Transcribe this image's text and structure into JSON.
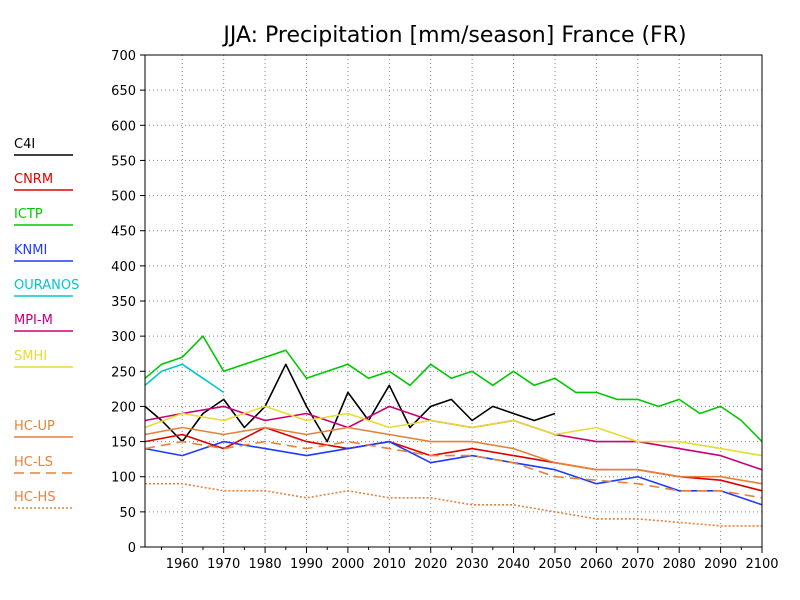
{
  "chart_data": {
    "type": "line",
    "title": "JJA: Precipitation [mm/season] France (FR)",
    "xlabel": "",
    "ylabel": "",
    "xlim": [
      1951,
      2100
    ],
    "ylim": [
      0,
      700
    ],
    "x_ticks": [
      1960,
      1970,
      1980,
      1990,
      2000,
      2010,
      2020,
      2030,
      2040,
      2050,
      2060,
      2070,
      2080,
      2090,
      2100
    ],
    "y_ticks": [
      0,
      50,
      100,
      150,
      200,
      250,
      300,
      350,
      400,
      450,
      500,
      550,
      600,
      650,
      700
    ],
    "grid": true,
    "legend_position": "left",
    "series": [
      {
        "name": "C4I",
        "color": "#000000",
        "style": "solid",
        "x": [
          1951,
          1955,
          1960,
          1965,
          1970,
          1975,
          1980,
          1985,
          1990,
          1995,
          2000,
          2005,
          2010,
          2015,
          2020,
          2025,
          2030,
          2035,
          2040,
          2045,
          2050
        ],
        "values": [
          200,
          180,
          150,
          190,
          210,
          170,
          200,
          260,
          200,
          150,
          220,
          180,
          230,
          170,
          200,
          210,
          180,
          200,
          190,
          180,
          190
        ]
      },
      {
        "name": "CNRM",
        "color": "#e00000",
        "style": "solid",
        "x": [
          1951,
          1960,
          1970,
          1980,
          1990,
          2000,
          2010,
          2020,
          2030,
          2040,
          2050,
          2060,
          2070,
          2080,
          2090,
          2100
        ],
        "values": [
          150,
          160,
          140,
          170,
          150,
          140,
          150,
          130,
          140,
          130,
          120,
          110,
          110,
          100,
          95,
          80
        ]
      },
      {
        "name": "ICTP",
        "color": "#00c800",
        "style": "solid",
        "x": [
          1951,
          1955,
          1960,
          1965,
          1970,
          1975,
          1980,
          1985,
          1990,
          1995,
          2000,
          2005,
          2010,
          2015,
          2020,
          2025,
          2030,
          2035,
          2040,
          2045,
          2050,
          2055,
          2060,
          2065,
          2070,
          2075,
          2080,
          2085,
          2090,
          2095,
          2100
        ],
        "values": [
          240,
          260,
          270,
          300,
          250,
          260,
          270,
          280,
          240,
          250,
          260,
          240,
          250,
          230,
          260,
          240,
          250,
          230,
          250,
          230,
          240,
          220,
          220,
          210,
          210,
          200,
          210,
          190,
          200,
          180,
          150
        ]
      },
      {
        "name": "KNMI",
        "color": "#1e3cff",
        "style": "solid",
        "x": [
          1951,
          1960,
          1970,
          1980,
          1990,
          2000,
          2010,
          2020,
          2030,
          2040,
          2050,
          2060,
          2070,
          2080,
          2090,
          2100
        ],
        "values": [
          140,
          130,
          150,
          140,
          130,
          140,
          150,
          120,
          130,
          120,
          110,
          90,
          100,
          80,
          80,
          60
        ]
      },
      {
        "name": "OURANOS",
        "color": "#00c8c8",
        "style": "solid",
        "x": [
          1951,
          1955,
          1960,
          1965,
          1970
        ],
        "values": [
          230,
          250,
          260,
          240,
          220
        ]
      },
      {
        "name": "MPI-M",
        "color": "#c80078",
        "style": "solid",
        "x": [
          1951,
          1960,
          1970,
          1980,
          1990,
          2000,
          2010,
          2020,
          2030,
          2040,
          2050,
          2060,
          2070,
          2080,
          2090,
          2100
        ],
        "values": [
          180,
          190,
          200,
          180,
          190,
          170,
          200,
          180,
          170,
          180,
          160,
          150,
          150,
          140,
          130,
          110
        ]
      },
      {
        "name": "SMHI",
        "color": "#e6dc32",
        "style": "solid",
        "x": [
          1951,
          1960,
          1970,
          1980,
          1990,
          2000,
          2010,
          2020,
          2030,
          2040,
          2050,
          2060,
          2070,
          2080,
          2090,
          2100
        ],
        "values": [
          170,
          190,
          180,
          200,
          180,
          190,
          170,
          180,
          170,
          180,
          160,
          170,
          150,
          150,
          140,
          130
        ]
      },
      {
        "name": "HC-UP",
        "color": "#e6823c",
        "style": "solid",
        "x": [
          1951,
          1960,
          1970,
          1980,
          1990,
          2000,
          2010,
          2020,
          2030,
          2040,
          2050,
          2060,
          2070,
          2080,
          2090,
          2100
        ],
        "values": [
          160,
          170,
          160,
          170,
          160,
          170,
          160,
          150,
          150,
          140,
          120,
          110,
          110,
          100,
          100,
          90
        ]
      },
      {
        "name": "HC-LS",
        "color": "#e6823c",
        "style": "dashed",
        "x": [
          1951,
          1960,
          1970,
          1980,
          1990,
          2000,
          2010,
          2020,
          2030,
          2040,
          2050,
          2060,
          2070,
          2080,
          2090,
          2100
        ],
        "values": [
          140,
          150,
          140,
          150,
          140,
          150,
          140,
          130,
          130,
          120,
          100,
          95,
          90,
          80,
          80,
          70
        ]
      },
      {
        "name": "HC-HS",
        "color": "#e6823c",
        "style": "dotted",
        "x": [
          1951,
          1960,
          1970,
          1980,
          1990,
          2000,
          2010,
          2020,
          2030,
          2040,
          2050,
          2060,
          2070,
          2080,
          2090,
          2100
        ],
        "values": [
          90,
          90,
          80,
          80,
          70,
          80,
          70,
          70,
          60,
          60,
          50,
          40,
          40,
          35,
          30,
          30
        ]
      }
    ]
  }
}
